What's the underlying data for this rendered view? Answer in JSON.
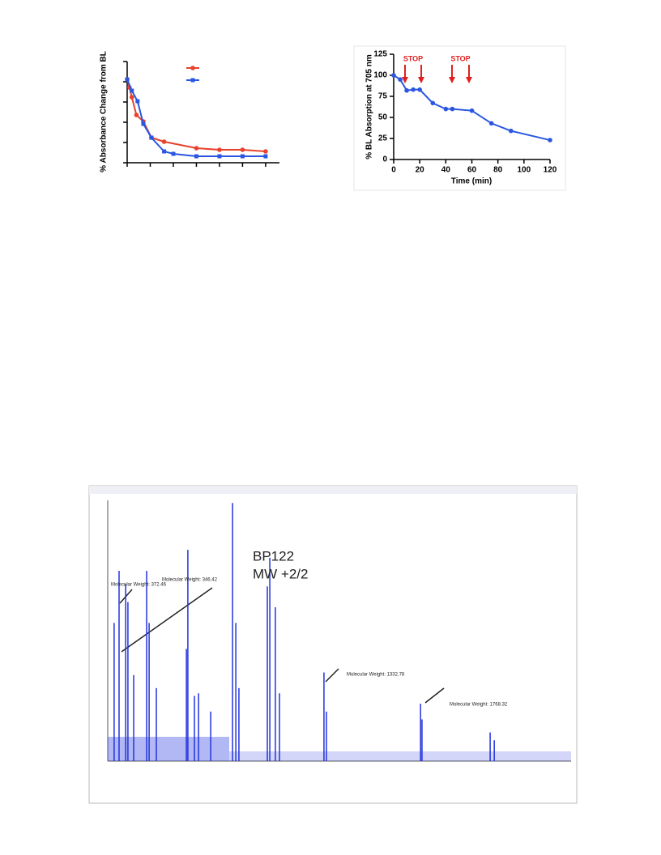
{
  "chart_data": [
    {
      "type": "line",
      "ylabel": "% Absorbance Change from BL",
      "tick_labels": false,
      "xlim": [
        0,
        6.6
      ],
      "xticks": [
        0,
        1,
        2,
        3,
        4,
        5,
        6
      ],
      "ylim": [
        0,
        125
      ],
      "yticks": [
        0,
        25,
        50,
        75,
        100,
        125
      ],
      "legend": "top-right",
      "series": [
        {
          "color": "#e8412c",
          "marker": "circle",
          "x": [
            0,
            0.1,
            0.2,
            0.4,
            0.7,
            1.05,
            1.6,
            3,
            4,
            5,
            6
          ],
          "values": [
            103,
            93,
            81,
            59,
            51,
            31,
            26,
            18,
            16,
            16,
            14
          ]
        },
        {
          "color": "#2a56e0",
          "marker": "square",
          "x": [
            0,
            0.2,
            0.45,
            0.7,
            1.05,
            1.6,
            2,
            3,
            4,
            5,
            6
          ],
          "values": [
            103,
            89,
            76,
            48,
            31,
            14,
            11,
            8,
            8,
            8,
            8
          ]
        }
      ]
    },
    {
      "type": "line",
      "xlabel": "Time (min)",
      "ylabel": "% BL  Absorption at 705 nm",
      "tick_labels": true,
      "xlim": [
        0,
        120
      ],
      "xticks": [
        0,
        20,
        40,
        60,
        80,
        100,
        120
      ],
      "ylim": [
        0,
        125
      ],
      "yticks": [
        0,
        25,
        50,
        75,
        100,
        125
      ],
      "annotations": [
        "STOP",
        "STOP"
      ],
      "annotation_color": "#e02020",
      "series": [
        {
          "color": "#2a56e0",
          "marker": "circle",
          "x": [
            0,
            5,
            10,
            15,
            20,
            30,
            40,
            45,
            60,
            75,
            90,
            120
          ],
          "values": [
            100,
            95,
            82,
            83,
            83,
            67,
            60,
            60,
            58,
            43,
            34,
            23
          ]
        }
      ]
    },
    {
      "type": "spectrum",
      "color": "#2233dd",
      "xlim": [
        300,
        2550
      ],
      "ylim": [
        0,
        100
      ],
      "annotations": [
        "BP122",
        "MW +2/2",
        "Molecular Weight: 372.46",
        "Molecular Weight: 346.42",
        "Molecular Weight: 1332.78",
        "Molecular Weight: 1768.32"
      ],
      "x": [
        331,
        355,
        387,
        398,
        426,
        489,
        501,
        536,
        682,
        689,
        721,
        741,
        800,
        906,
        922,
        937,
        1075,
        1087,
        1114,
        1134,
        1350,
        1362,
        1819,
        1826,
        2157,
        2177
      ],
      "values": [
        53,
        73,
        68,
        61,
        33,
        73,
        53,
        28,
        43,
        81,
        25,
        26,
        19,
        99,
        53,
        28,
        67,
        78,
        59,
        26,
        34,
        19,
        22,
        16,
        11,
        8
      ]
    }
  ]
}
